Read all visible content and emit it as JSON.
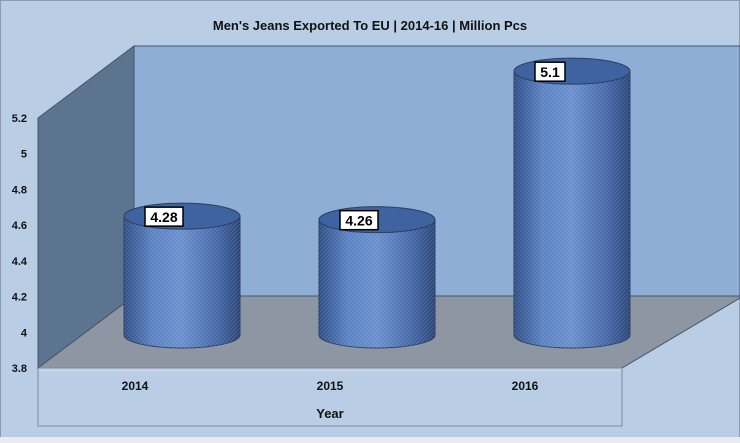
{
  "chart_data": {
    "type": "bar",
    "title": "Men's Jeans Exported To EU | 2014-16 | Million Pcs",
    "xlabel": "Year",
    "ylabel": "",
    "categories": [
      "2014",
      "2015",
      "2016"
    ],
    "values": [
      4.28,
      4.26,
      5.1
    ],
    "data_labels": [
      "4.28",
      "4.26",
      "5.1"
    ],
    "ylim": [
      3.8,
      5.2
    ],
    "yticks": [
      "3.8",
      "4",
      "4.2",
      "4.4",
      "4.6",
      "4.8",
      "5",
      "5.2"
    ],
    "grid": false,
    "legend": "none",
    "bar_shape": "cylinder",
    "colors": {
      "chart_background": "#b9cde4",
      "back_wall": "#8eaed6",
      "side_wall": "#5c7490",
      "floor": "#8d96a2",
      "bar": "#4d74b4",
      "bar_top": "#3f63a0"
    }
  }
}
